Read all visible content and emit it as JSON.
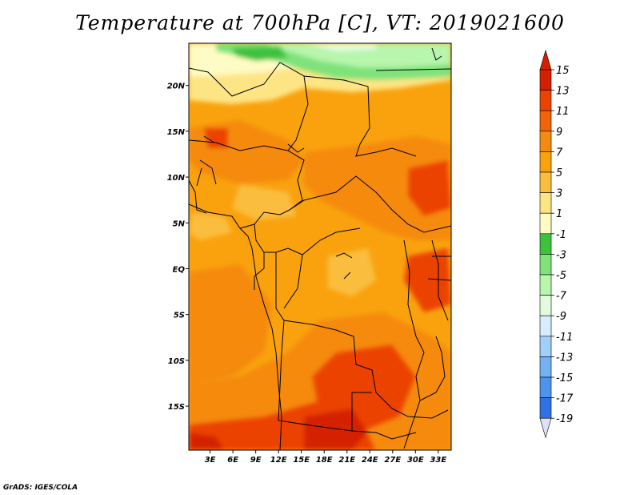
{
  "title": "Temperature at 700hPa [C], VT: 2019021600",
  "credit": "GrADS: IGES/COLA",
  "map": {
    "lon_labels": [
      "3E",
      "6E",
      "9E",
      "12E",
      "15E",
      "18E",
      "21E",
      "24E",
      "27E",
      "30E",
      "33E"
    ],
    "lon_values": [
      3,
      6,
      9,
      12,
      15,
      18,
      21,
      24,
      27,
      30,
      33
    ],
    "lat_labels": [
      "20N",
      "15N",
      "10N",
      "5N",
      "EQ",
      "5S",
      "10S",
      "15S"
    ],
    "lat_values": [
      20,
      15,
      10,
      5,
      0,
      -5,
      -10,
      -15
    ],
    "lon_range": [
      0.2,
      34.7
    ],
    "lat_range": [
      -19.8,
      24.6
    ]
  },
  "colorbar": {
    "labels": [
      "15",
      "13",
      "11",
      "9",
      "7",
      "5",
      "3",
      "1",
      "-1",
      "-3",
      "-5",
      "-7",
      "-9",
      "-11",
      "-13",
      "-15",
      "-17",
      "-19"
    ],
    "colors": [
      "#d42000",
      "#ec4200",
      "#f26408",
      "#f58a10",
      "#f9a20e",
      "#fbbd3e",
      "#fde585",
      "#fffbc4",
      "#3ec23c",
      "#7fe27a",
      "#b8f5ad",
      "#e2fbdc",
      "#d8ecfd",
      "#a2cff9",
      "#74b2f4",
      "#4e93ed",
      "#2f72e6",
      "#1a4fd0",
      "#0e2fa8",
      "#06106e"
    ],
    "max_triangle_color": "#d42000",
    "min_triangle_color": "#e0e0f6"
  }
}
